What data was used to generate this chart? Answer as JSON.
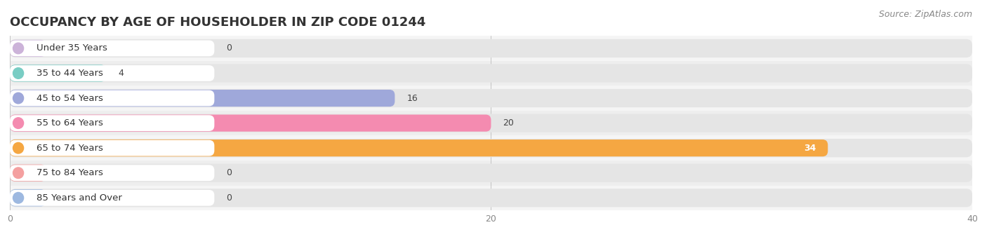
{
  "title": "OCCUPANCY BY AGE OF HOUSEHOLDER IN ZIP CODE 01244",
  "source": "Source: ZipAtlas.com",
  "categories": [
    "Under 35 Years",
    "35 to 44 Years",
    "45 to 54 Years",
    "55 to 64 Years",
    "65 to 74 Years",
    "75 to 84 Years",
    "85 Years and Over"
  ],
  "values": [
    0,
    4,
    16,
    20,
    34,
    0,
    0
  ],
  "bar_colors": [
    "#ccb3d9",
    "#79cdc4",
    "#9fa8da",
    "#f48bb0",
    "#f5a742",
    "#f4a0a0",
    "#9db8e0"
  ],
  "bar_bg_color": "#e5e5e5",
  "xlim_max": 40,
  "xticks": [
    0,
    20,
    40
  ],
  "title_fontsize": 13,
  "label_fontsize": 9.5,
  "value_fontsize": 9,
  "source_fontsize": 9,
  "background_color": "#ffffff",
  "row_bg_even": "#f5f5f5",
  "row_bg_odd": "#eeeeee"
}
